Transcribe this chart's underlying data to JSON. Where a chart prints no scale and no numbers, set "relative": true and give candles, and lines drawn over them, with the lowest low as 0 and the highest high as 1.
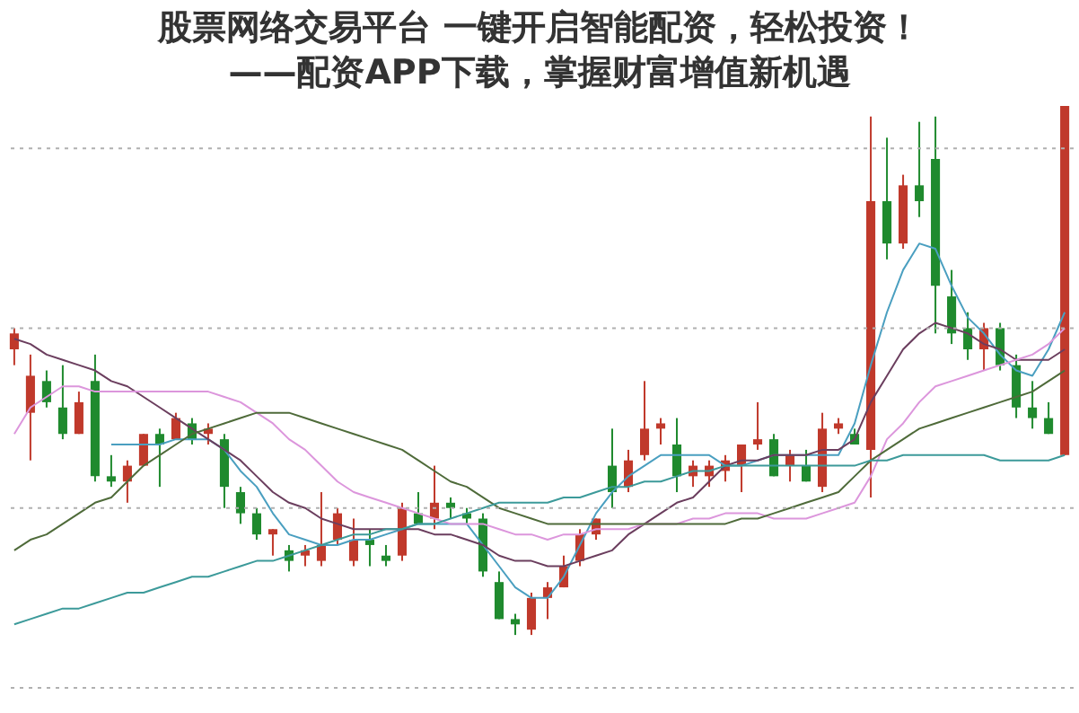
{
  "chart_data": {
    "type": "candlestick",
    "title": "股票网络交易平台 一键开启智能配资，轻松投资！",
    "subtitle": "——配资APP下载，掌握财富增值新机遇",
    "relative": true,
    "categories": [
      null,
      null,
      null,
      null,
      null,
      null,
      null,
      null,
      null,
      null,
      null,
      null,
      null,
      null,
      null,
      null,
      null,
      null,
      null,
      null,
      null,
      null,
      null,
      null,
      null,
      null,
      null,
      null,
      null,
      null,
      null,
      null,
      null,
      null,
      null,
      null,
      null,
      null,
      null,
      null,
      null,
      null,
      null,
      null,
      null,
      null,
      null,
      null,
      null,
      null,
      null,
      null,
      null,
      null,
      null,
      null,
      null,
      null,
      null,
      null,
      null,
      null,
      null,
      null,
      null,
      null
    ],
    "ohlc": [
      [
        0.54,
        0.58,
        0.51,
        0.57
      ],
      [
        0.42,
        0.53,
        0.33,
        0.49
      ],
      [
        0.48,
        0.5,
        0.43,
        0.44
      ],
      [
        0.43,
        0.51,
        0.37,
        0.38
      ],
      [
        0.38,
        0.46,
        0.38,
        0.44
      ],
      [
        0.48,
        0.53,
        0.29,
        0.3
      ],
      [
        0.3,
        0.34,
        0.28,
        0.29
      ],
      [
        0.29,
        0.33,
        0.25,
        0.32
      ],
      [
        0.32,
        0.38,
        0.32,
        0.38
      ],
      [
        0.38,
        0.39,
        0.28,
        0.36
      ],
      [
        0.37,
        0.42,
        0.37,
        0.41
      ],
      [
        0.4,
        0.41,
        0.36,
        0.37
      ],
      [
        0.38,
        0.4,
        0.36,
        0.39
      ],
      [
        0.37,
        0.38,
        0.24,
        0.28
      ],
      [
        0.27,
        0.28,
        0.21,
        0.23
      ],
      [
        0.23,
        0.24,
        0.18,
        0.19
      ],
      [
        0.19,
        0.2,
        0.15,
        0.2
      ],
      [
        0.16,
        0.17,
        0.12,
        0.14
      ],
      [
        0.15,
        0.17,
        0.13,
        0.16
      ],
      [
        0.14,
        0.27,
        0.13,
        0.17
      ],
      [
        0.18,
        0.24,
        0.17,
        0.23
      ],
      [
        0.14,
        0.22,
        0.13,
        0.18
      ],
      [
        0.18,
        0.2,
        0.13,
        0.17
      ],
      [
        0.15,
        0.17,
        0.13,
        0.14
      ],
      [
        0.15,
        0.25,
        0.14,
        0.24
      ],
      [
        0.23,
        0.27,
        0.21,
        0.21
      ],
      [
        0.22,
        0.32,
        0.2,
        0.25
      ],
      [
        0.25,
        0.26,
        0.22,
        0.24
      ],
      [
        0.23,
        0.24,
        0.21,
        0.22
      ],
      [
        0.22,
        0.23,
        0.11,
        0.12
      ],
      [
        0.1,
        0.12,
        0.03,
        0.03
      ],
      [
        0.03,
        0.04,
        0.0,
        0.02
      ],
      [
        0.01,
        0.08,
        0.0,
        0.07
      ],
      [
        0.07,
        0.1,
        0.03,
        0.09
      ],
      [
        0.09,
        0.15,
        0.09,
        0.13
      ],
      [
        0.14,
        0.2,
        0.13,
        0.19
      ],
      [
        0.19,
        0.22,
        0.18,
        0.22
      ],
      [
        0.32,
        0.39,
        0.24,
        0.27
      ],
      [
        0.28,
        0.35,
        0.27,
        0.33
      ],
      [
        0.34,
        0.48,
        0.33,
        0.39
      ],
      [
        0.39,
        0.41,
        0.36,
        0.4
      ],
      [
        0.36,
        0.41,
        0.27,
        0.3
      ],
      [
        0.3,
        0.33,
        0.28,
        0.32
      ],
      [
        0.3,
        0.33,
        0.28,
        0.32
      ],
      [
        0.31,
        0.34,
        0.29,
        0.33
      ],
      [
        0.32,
        0.36,
        0.27,
        0.36
      ],
      [
        0.36,
        0.44,
        0.35,
        0.37
      ],
      [
        0.37,
        0.38,
        0.3,
        0.3
      ],
      [
        0.32,
        0.35,
        0.29,
        0.34
      ],
      [
        0.32,
        0.35,
        0.29,
        0.29
      ],
      [
        0.28,
        0.42,
        0.27,
        0.39
      ],
      [
        0.39,
        0.41,
        0.38,
        0.4
      ],
      [
        0.38,
        0.39,
        0.36,
        0.36
      ],
      [
        0.35,
        0.98,
        0.26,
        0.82
      ],
      [
        0.82,
        0.94,
        0.71,
        0.74
      ],
      [
        0.74,
        0.87,
        0.73,
        0.85
      ],
      [
        0.85,
        0.97,
        0.79,
        0.82
      ],
      [
        0.9,
        0.98,
        0.57,
        0.66
      ],
      [
        0.64,
        0.69,
        0.55,
        0.57
      ],
      [
        0.58,
        0.61,
        0.52,
        0.54
      ],
      [
        0.54,
        0.59,
        0.5,
        0.58
      ],
      [
        0.58,
        0.59,
        0.5,
        0.51
      ],
      [
        0.51,
        0.53,
        0.41,
        0.43
      ],
      [
        0.43,
        0.48,
        0.39,
        0.41
      ],
      [
        0.41,
        0.44,
        0.38,
        0.38
      ],
      [
        0.34,
        1.0,
        0.34,
        1.0
      ]
    ],
    "colors": [
      "#c0392b",
      "#c0392b",
      "#1f8a2e",
      "#1f8a2e",
      "#c0392b",
      "#1f8a2e",
      "#1f8a2e",
      "#c0392b",
      "#c0392b",
      "#1f8a2e",
      "#c0392b",
      "#1f8a2e",
      "#c0392b",
      "#1f8a2e",
      "#1f8a2e",
      "#1f8a2e",
      "#c0392b",
      "#1f8a2e",
      "#c0392b",
      "#c0392b",
      "#c0392b",
      "#c0392b",
      "#1f8a2e",
      "#1f8a2e",
      "#c0392b",
      "#1f8a2e",
      "#c0392b",
      "#1f8a2e",
      "#1f8a2e",
      "#1f8a2e",
      "#1f8a2e",
      "#1f8a2e",
      "#c0392b",
      "#c0392b",
      "#c0392b",
      "#c0392b",
      "#c0392b",
      "#1f8a2e",
      "#c0392b",
      "#c0392b",
      "#c0392b",
      "#1f8a2e",
      "#c0392b",
      "#c0392b",
      "#c0392b",
      "#c0392b",
      "#c0392b",
      "#1f8a2e",
      "#c0392b",
      "#1f8a2e",
      "#c0392b",
      "#c0392b",
      "#1f8a2e",
      "#c0392b",
      "#1f8a2e",
      "#c0392b",
      "#1f8a2e",
      "#1f8a2e",
      "#1f8a2e",
      "#1f8a2e",
      "#c0392b",
      "#1f8a2e",
      "#1f8a2e",
      "#1f8a2e",
      "#1f8a2e",
      "#c0392b"
    ],
    "series": [
      {
        "type": "line",
        "color": "#4a9fc0",
        "values": [
          null,
          null,
          null,
          null,
          null,
          null,
          0.36,
          0.36,
          0.36,
          0.36,
          0.37,
          0.37,
          0.37,
          0.35,
          0.31,
          0.28,
          0.23,
          0.19,
          0.18,
          0.17,
          0.17,
          0.18,
          0.18,
          0.19,
          0.2,
          0.21,
          0.21,
          0.21,
          0.21,
          0.17,
          0.13,
          0.09,
          0.07,
          0.07,
          0.11,
          0.17,
          0.23,
          0.27,
          0.3,
          0.32,
          0.34,
          0.34,
          0.34,
          0.34,
          0.32,
          0.32,
          0.33,
          0.34,
          0.34,
          0.34,
          0.34,
          0.34,
          0.4,
          0.51,
          0.61,
          0.69,
          0.74,
          0.73,
          0.66,
          0.6,
          0.57,
          0.53,
          0.5,
          0.49,
          0.54,
          0.61
        ]
      },
      {
        "type": "line",
        "color": "#6b3e5e",
        "values": [
          0.56,
          0.55,
          0.53,
          0.52,
          0.51,
          0.5,
          0.48,
          0.47,
          0.45,
          0.43,
          0.41,
          0.39,
          0.37,
          0.35,
          0.33,
          0.3,
          0.27,
          0.25,
          0.24,
          0.22,
          0.21,
          0.2,
          0.2,
          0.2,
          0.2,
          0.2,
          0.19,
          0.19,
          0.18,
          0.17,
          0.15,
          0.14,
          0.14,
          0.13,
          0.13,
          0.14,
          0.15,
          0.16,
          0.19,
          0.21,
          0.23,
          0.25,
          0.26,
          0.29,
          0.32,
          0.33,
          0.33,
          0.34,
          0.34,
          0.34,
          0.35,
          0.35,
          0.37,
          0.44,
          0.49,
          0.54,
          0.57,
          0.59,
          0.58,
          0.57,
          0.55,
          0.54,
          0.52,
          0.52,
          0.52,
          0.54
        ]
      },
      {
        "type": "line",
        "color": "#dc96dc",
        "values": [
          0.38,
          0.43,
          0.45,
          0.47,
          0.47,
          0.46,
          0.46,
          0.46,
          0.46,
          0.46,
          0.46,
          0.46,
          0.46,
          0.45,
          0.44,
          0.42,
          0.4,
          0.37,
          0.35,
          0.32,
          0.29,
          0.27,
          0.26,
          0.25,
          0.24,
          0.23,
          0.22,
          0.21,
          0.21,
          0.21,
          0.2,
          0.19,
          0.19,
          0.18,
          0.19,
          0.19,
          0.2,
          0.2,
          0.2,
          0.21,
          0.21,
          0.21,
          0.22,
          0.22,
          0.23,
          0.23,
          0.23,
          0.22,
          0.22,
          0.22,
          0.23,
          0.24,
          0.25,
          0.3,
          0.37,
          0.4,
          0.44,
          0.47,
          0.48,
          0.49,
          0.5,
          0.51,
          0.52,
          0.53,
          0.55,
          0.58
        ]
      },
      {
        "type": "line",
        "color": "#4f6b3a",
        "values": [
          0.16,
          0.18,
          0.19,
          0.21,
          0.23,
          0.25,
          0.26,
          0.29,
          0.32,
          0.34,
          0.36,
          0.38,
          0.39,
          0.4,
          0.41,
          0.42,
          0.42,
          0.42,
          0.41,
          0.4,
          0.39,
          0.38,
          0.37,
          0.36,
          0.35,
          0.33,
          0.31,
          0.29,
          0.28,
          0.26,
          0.24,
          0.23,
          0.22,
          0.21,
          0.21,
          0.21,
          0.21,
          0.21,
          0.21,
          0.21,
          0.21,
          0.21,
          0.21,
          0.21,
          0.21,
          0.22,
          0.22,
          0.23,
          0.24,
          0.25,
          0.26,
          0.27,
          0.3,
          0.33,
          0.35,
          0.37,
          0.39,
          0.4,
          0.41,
          0.42,
          0.43,
          0.44,
          0.45,
          0.46,
          0.48,
          0.5
        ]
      },
      {
        "type": "line",
        "color": "#3c9a9a",
        "values": [
          0.02,
          0.03,
          0.04,
          0.05,
          0.05,
          0.06,
          0.07,
          0.08,
          0.08,
          0.09,
          0.1,
          0.11,
          0.11,
          0.12,
          0.13,
          0.14,
          0.14,
          0.15,
          0.16,
          0.17,
          0.18,
          0.19,
          0.19,
          0.2,
          0.2,
          0.21,
          0.21,
          0.22,
          0.23,
          0.24,
          0.25,
          0.25,
          0.25,
          0.25,
          0.26,
          0.26,
          0.27,
          0.28,
          0.28,
          0.29,
          0.29,
          0.3,
          0.31,
          0.31,
          0.32,
          0.32,
          0.32,
          0.32,
          0.32,
          0.32,
          0.32,
          0.32,
          0.32,
          0.33,
          0.33,
          0.34,
          0.34,
          0.34,
          0.34,
          0.34,
          0.34,
          0.33,
          0.33,
          0.33,
          0.33,
          0.34
        ]
      }
    ],
    "ref_lines": [
      {
        "axis": "y",
        "value": 0.92,
        "color": "#b0b0b0",
        "line_style": "dotted"
      },
      {
        "axis": "y",
        "value": 0.58,
        "color": "#b0b0b0",
        "line_style": "dotted"
      },
      {
        "axis": "y",
        "value": 0.24,
        "color": "#b0b0b0",
        "line_style": "dotted"
      },
      {
        "axis": "y",
        "value": -0.1,
        "color": "#b0b0b0",
        "line_style": "dotted"
      }
    ]
  }
}
